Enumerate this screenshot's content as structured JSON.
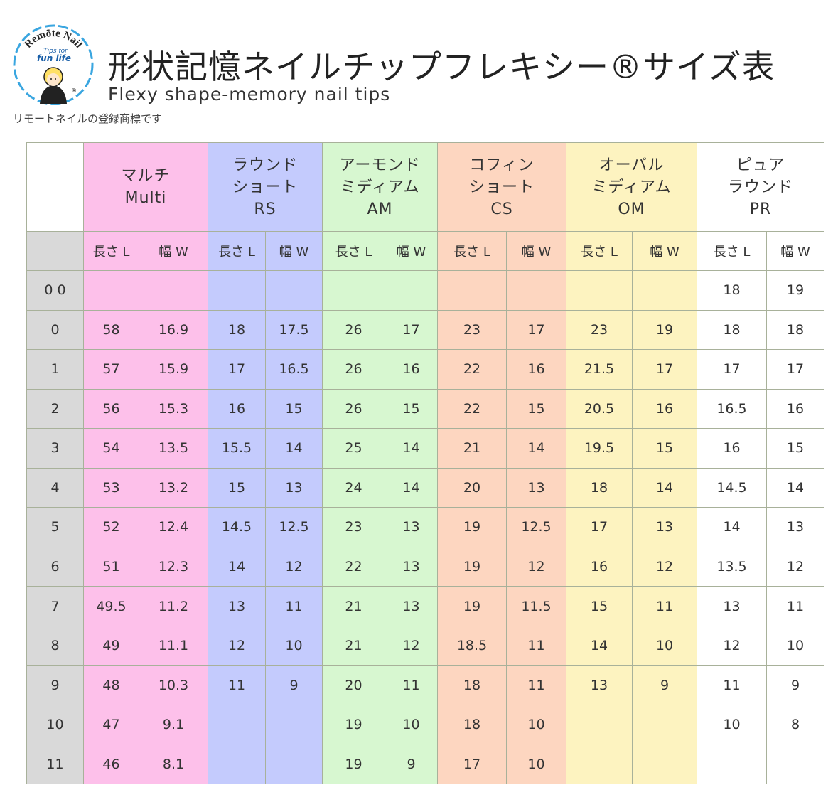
{
  "header": {
    "title": "形状記憶ネイルチップフレキシー®サイズ表",
    "subtitle": "Flexy shape-memory nail tips",
    "trademark": "リモートネイルの登録商標です",
    "logo": {
      "brand": "Remöte Nail",
      "tagline": [
        "Tips for",
        "fun life"
      ],
      "mark": "®"
    }
  },
  "table": {
    "groups": [
      [
        "マルチ",
        "Multi"
      ],
      [
        "ラウンド",
        "ショート",
        "RS"
      ],
      [
        "アーモンド",
        "ミディアム",
        "AM"
      ],
      [
        "コフィン",
        "ショート",
        "CS"
      ],
      [
        "オーバル",
        "ミディアム",
        "OM"
      ],
      [
        "ピュア",
        "ラウンド",
        "PR"
      ]
    ],
    "subheaders": [
      "長さ L",
      "幅 W"
    ],
    "rows": [
      [
        "0 0",
        null,
        null,
        null,
        null,
        null,
        null,
        null,
        null,
        null,
        null,
        18,
        19
      ],
      [
        0,
        58,
        16.9,
        18,
        17.5,
        26,
        17,
        23,
        17,
        23,
        19,
        18,
        18
      ],
      [
        1,
        57,
        15.9,
        17,
        16.5,
        26,
        16,
        22,
        16,
        21.5,
        17,
        17,
        17
      ],
      [
        2,
        56,
        15.3,
        16,
        15,
        26,
        15,
        22,
        15,
        20.5,
        16,
        16.5,
        16
      ],
      [
        3,
        54,
        13.5,
        15.5,
        14,
        25,
        14,
        21,
        14,
        19.5,
        15,
        16,
        15
      ],
      [
        4,
        53,
        13.2,
        15,
        13,
        24,
        14,
        20,
        13,
        18,
        14,
        14.5,
        14
      ],
      [
        5,
        52,
        12.4,
        14.5,
        12.5,
        23,
        13,
        19,
        12.5,
        17,
        13,
        14,
        13
      ],
      [
        6,
        51,
        12.3,
        14,
        12,
        22,
        13,
        19,
        12,
        16,
        12,
        13.5,
        12
      ],
      [
        7,
        49.5,
        11.2,
        13,
        11,
        21,
        13,
        19,
        11.5,
        15,
        11,
        13,
        11
      ],
      [
        8,
        49,
        11.1,
        12,
        10,
        21,
        12,
        18.5,
        11,
        14,
        10,
        12,
        10
      ],
      [
        9,
        48,
        10.3,
        11,
        9,
        20,
        11,
        18,
        11,
        13,
        9,
        11,
        9
      ],
      [
        10,
        47,
        9.1,
        null,
        null,
        19,
        10,
        18,
        10,
        null,
        null,
        10,
        8
      ],
      [
        11,
        46,
        8.1,
        null,
        null,
        19,
        9,
        17,
        10,
        null,
        null,
        null,
        null
      ]
    ]
  }
}
